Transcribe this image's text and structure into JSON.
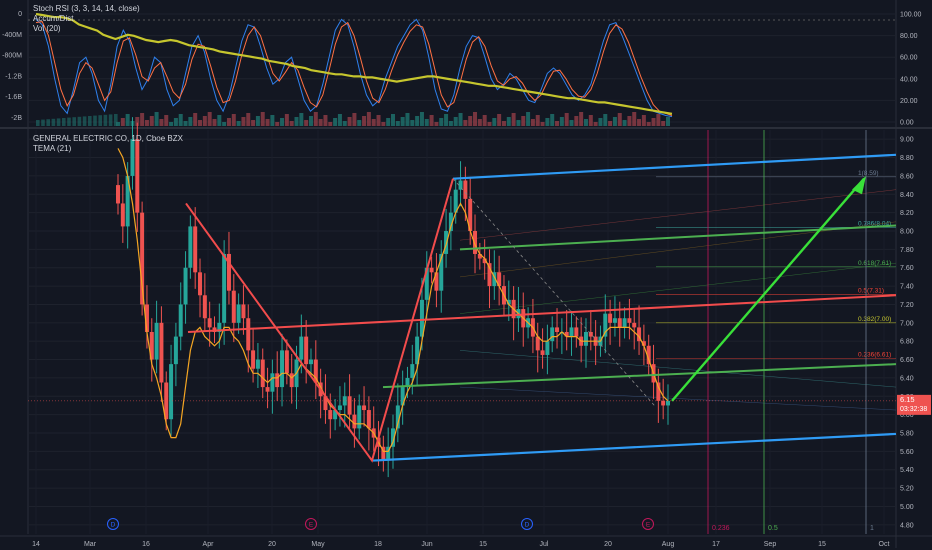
{
  "upper_legend": {
    "line1": "Stoch RSI (3, 3, 14, 14, close)",
    "line2": "Accum/Dist",
    "line3": "Vol (20)"
  },
  "main_legend": {
    "line1": "GENERAL ELECTRIC CO, 1D, Cboe BZX",
    "line2": "TEMA (21)"
  },
  "colors": {
    "background": "#131722",
    "up": "#26a69a",
    "down": "#ef5350",
    "tema": "#f5a623",
    "trend_red": "#f24c4c",
    "channel_blue": "#2f9bf5",
    "channel_green": "#4caf50",
    "arrow_green": "#39e039",
    "stoch_k": "#2f80ed",
    "stoch_d": "#ff7043",
    "accum_dist": "#c6c62e"
  },
  "price_label": {
    "value": "6.15",
    "countdown": "03:32:38"
  },
  "chart_data": [
    {
      "type": "candlestick",
      "title": "GENERAL ELECTRIC CO, 1D, Cboe BZX",
      "ylim": [
        4.7,
        9.1
      ],
      "y_ticks": [
        "9.00",
        "8.80",
        "8.60",
        "8.40",
        "8.20",
        "8.00",
        "7.80",
        "7.60",
        "7.40",
        "7.20",
        "7.00",
        "6.80",
        "6.60",
        "6.40",
        "6.20",
        "6.00",
        "5.80",
        "5.60",
        "5.40",
        "5.20",
        "5.00",
        "4.80"
      ],
      "x_ticks": [
        "14",
        "Mar",
        "16",
        "Apr",
        "20",
        "May",
        "18",
        "Jun",
        "15",
        "Jul",
        "20",
        "Aug",
        "17",
        "Sep",
        "15",
        "Oct"
      ],
      "series_close": [
        8.3,
        8.05,
        8.6,
        9.0,
        8.2,
        7.2,
        6.9,
        6.6,
        7.0,
        6.35,
        5.95,
        6.55,
        6.85,
        7.2,
        7.6,
        8.05,
        7.55,
        7.3,
        7.05,
        6.95,
        6.9,
        7.0,
        7.75,
        7.35,
        7.0,
        7.2,
        7.05,
        6.7,
        6.5,
        6.6,
        6.3,
        6.25,
        6.45,
        6.3,
        6.7,
        6.45,
        6.3,
        6.6,
        6.85,
        6.55,
        6.6,
        6.35,
        6.2,
        6.05,
        5.95,
        6.05,
        6.1,
        6.2,
        6.0,
        5.85,
        6.1,
        6.05,
        5.85,
        5.75,
        5.65,
        5.5,
        5.65,
        5.85,
        6.1,
        6.3,
        6.4,
        6.55,
        6.85,
        7.25,
        7.6,
        7.55,
        7.35,
        7.75,
        8.0,
        8.2,
        8.45,
        8.55,
        8.35,
        8.0,
        7.75,
        7.7,
        7.65,
        7.4,
        7.55,
        7.4,
        7.2,
        7.25,
        7.05,
        7.15,
        6.95,
        7.05,
        6.85,
        6.7,
        6.65,
        6.8,
        6.95,
        6.9,
        6.9,
        6.85,
        6.95,
        6.85,
        6.75,
        6.9,
        6.85,
        6.75,
        6.85,
        7.1,
        7.0,
        7.05,
        6.95,
        7.05,
        7.0,
        6.95,
        6.8,
        6.75,
        6.55,
        6.35,
        6.15,
        6.1,
        6.15
      ],
      "tema": [
        8.9,
        8.8,
        8.6,
        8.3,
        7.9,
        7.4,
        6.9,
        6.55,
        6.4,
        6.2,
        5.9,
        5.75,
        5.75,
        5.9,
        6.3,
        6.7,
        6.9,
        6.95,
        6.85,
        6.8,
        6.75,
        6.8,
        6.95,
        6.95,
        6.85,
        6.8,
        6.7,
        6.55,
        6.45,
        6.45,
        6.4,
        6.35,
        6.4,
        6.4,
        6.45,
        6.45,
        6.4,
        6.45,
        6.55,
        6.5,
        6.45,
        6.4,
        6.3,
        6.2,
        6.1,
        6.05,
        6.0,
        6.0,
        5.95,
        5.9,
        5.9,
        5.9,
        5.85,
        5.8,
        5.7,
        5.6,
        5.6,
        5.7,
        5.9,
        6.1,
        6.25,
        6.35,
        6.5,
        6.8,
        7.1,
        7.4,
        7.55,
        7.7,
        7.85,
        8.05,
        8.2,
        8.3,
        8.2,
        8.0,
        7.85,
        7.75,
        7.7,
        7.6,
        7.5,
        7.4,
        7.3,
        7.2,
        7.15,
        7.1,
        7.05,
        7.0,
        6.95,
        6.85,
        6.8,
        6.8,
        6.85,
        6.85,
        6.9,
        6.85,
        6.85,
        6.85,
        6.8,
        6.8,
        6.8,
        6.8,
        6.8,
        6.9,
        6.95,
        6.95,
        6.95,
        6.95,
        6.95,
        6.9,
        6.85,
        6.75,
        6.6,
        6.45,
        6.3,
        6.2,
        6.15
      ],
      "annotations": {
        "channel": "8.59 / 6.15 / 5.50",
        "fib_labels": [
          "1(8.59)",
          "0.786(8.04)",
          "0.618(7.61)",
          "0.5(7.31)",
          "0.382(7.00)",
          "0.236(6.61)"
        ],
        "time_fib_labels": [
          "0.236",
          "0.5",
          "1"
        ],
        "event_markers": [
          "D",
          "E",
          "D",
          "E"
        ]
      }
    },
    {
      "type": "line",
      "title": "Stoch RSI (3, 3, 14, 14, close)",
      "ylim": [
        0,
        100
      ],
      "y_ticks": [
        "100.00",
        "80.00",
        "60.00",
        "40.00",
        "20.00",
        "0.00"
      ],
      "left_ticks": [
        "0",
        "-400M",
        "-800M",
        "-1.2B",
        "-1.6B",
        "-2B"
      ],
      "series": [
        {
          "values": [
            95,
            90,
            70,
            40,
            15,
            8,
            30,
            55,
            60,
            45,
            20,
            10,
            35,
            70,
            85,
            75,
            50,
            30,
            40,
            60,
            55,
            30,
            15,
            20,
            45,
            70,
            80,
            65,
            40,
            20,
            10,
            25,
            50,
            75,
            90,
            88,
            70,
            50,
            35,
            40,
            55,
            60,
            40,
            20,
            10,
            15,
            35,
            60,
            85,
            95,
            90,
            70,
            45,
            25,
            15,
            20,
            40,
            55,
            70,
            80,
            90,
            95,
            85,
            60,
            30,
            12,
            10,
            25,
            50,
            70,
            80,
            78,
            60,
            40,
            30,
            35,
            45,
            40,
            30,
            20,
            18,
            30,
            45,
            50,
            45,
            35,
            25,
            20,
            25,
            35,
            55,
            75,
            90,
            92,
            80,
            65,
            50,
            35,
            20,
            10,
            8,
            6,
            5
          ]
        },
        {
          "values": [
            92,
            93,
            80,
            55,
            30,
            15,
            25,
            45,
            55,
            50,
            35,
            20,
            28,
            55,
            75,
            78,
            62,
            42,
            38,
            50,
            55,
            42,
            28,
            22,
            35,
            58,
            72,
            70,
            52,
            32,
            18,
            20,
            38,
            62,
            80,
            88,
            80,
            62,
            45,
            38,
            46,
            55,
            48,
            32,
            18,
            14,
            25,
            48,
            72,
            88,
            92,
            80,
            60,
            38,
            22,
            18,
            30,
            47,
            62,
            74,
            84,
            90,
            88,
            72,
            48,
            25,
            14,
            18,
            36,
            58,
            74,
            79,
            70,
            52,
            38,
            34,
            40,
            42,
            36,
            26,
            20,
            25,
            37,
            47,
            48,
            40,
            30,
            24,
            23,
            30,
            45,
            65,
            82,
            90,
            86,
            74,
            58,
            42,
            28,
            16,
            10,
            8,
            6
          ]
        }
      ],
      "accum_dist": [
        100,
        99,
        98,
        97,
        97,
        96,
        94,
        90,
        88,
        86,
        84,
        80,
        78,
        76,
        78,
        80,
        79,
        77,
        75,
        74,
        73,
        74,
        75,
        74,
        72,
        70,
        69,
        68,
        67,
        66,
        64,
        63,
        62,
        61,
        60,
        59,
        58,
        57,
        55,
        54,
        53,
        52,
        50,
        49,
        48,
        46,
        45,
        44,
        43,
        42,
        42,
        41,
        40,
        40,
        39,
        39,
        38,
        37,
        36,
        35,
        36,
        37,
        38,
        39,
        40,
        40,
        39,
        38,
        37,
        36,
        35,
        34,
        33,
        32,
        31,
        31,
        30,
        29,
        28,
        27,
        26,
        25,
        24,
        23,
        22,
        21,
        20,
        19,
        19,
        18,
        17,
        16,
        15,
        15,
        14,
        13,
        12,
        11,
        10,
        9,
        8,
        7,
        6,
        5,
        4
      ]
    }
  ]
}
